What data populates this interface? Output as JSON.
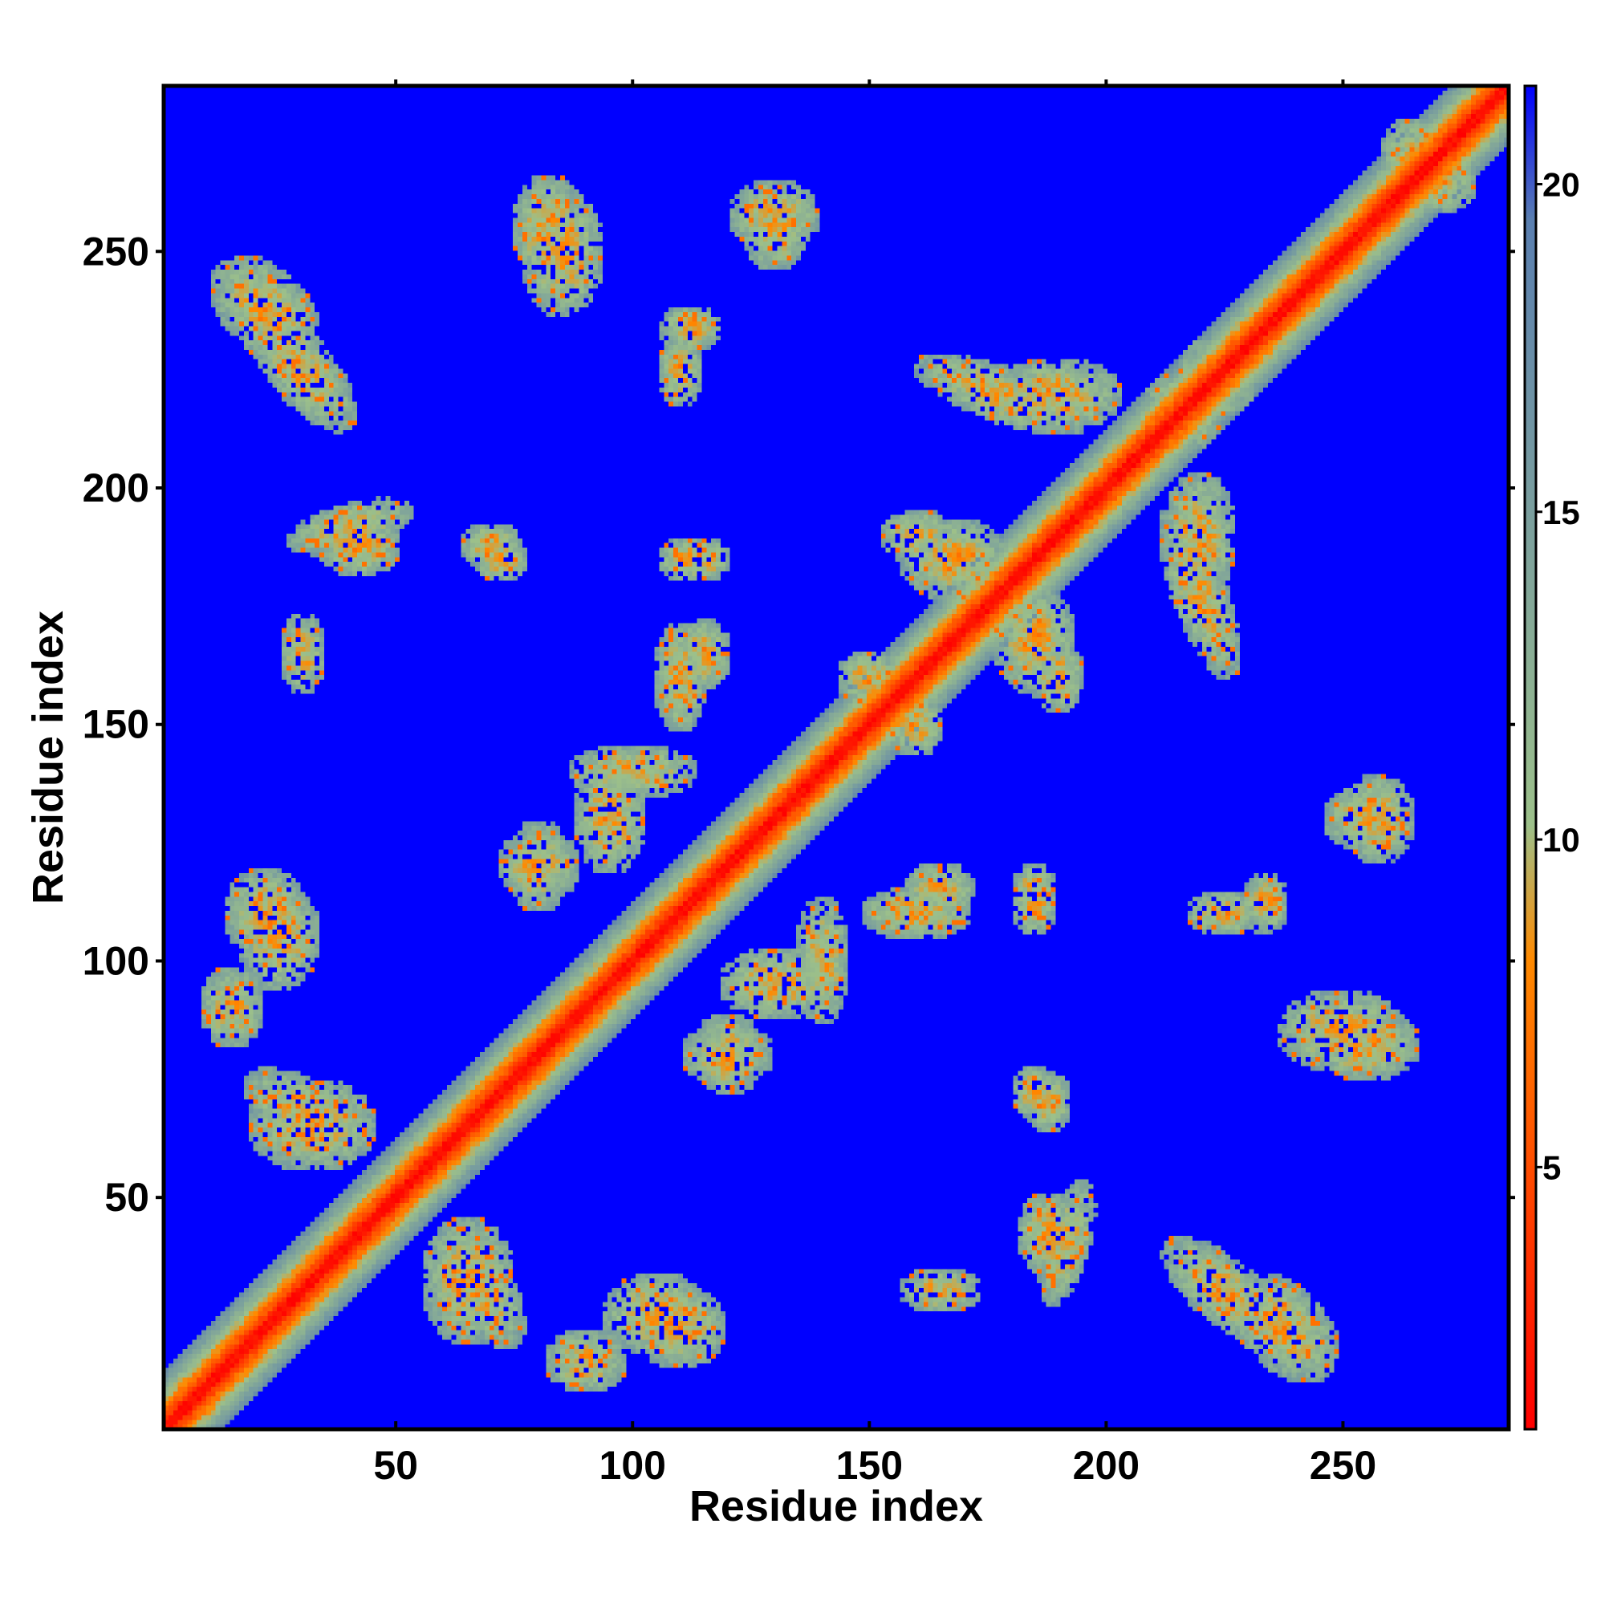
{
  "chart_data": {
    "type": "heatmap",
    "title": "",
    "xlabel": "Residue index",
    "ylabel": "Residue index",
    "xlim": [
      1,
      285
    ],
    "ylim": [
      1,
      285
    ],
    "x_ticks": [
      50,
      100,
      150,
      200,
      250
    ],
    "y_ticks": [
      50,
      100,
      150,
      200,
      250
    ],
    "colorbar": {
      "range": [
        1,
        21.5
      ],
      "ticks": [
        5,
        10,
        15,
        20
      ],
      "colors": [
        "#ff0000",
        "#ff8a00",
        "#9cc08a",
        "#5a7fb0",
        "#0000ff"
      ],
      "stops": [
        0.0,
        0.35,
        0.45,
        0.9,
        1.0
      ]
    },
    "values_description": "symmetric residue–residue distance map (Å); near diagonal ≈1–5 (red/orange), contact clusters ≈8–12 (green), background >20 (blue)",
    "contact_clusters": [
      {
        "x": 22,
        "y": 238,
        "sx": 14,
        "sy": 9,
        "angle": -45
      },
      {
        "x": 85,
        "y": 250,
        "sx": 9,
        "sy": 14,
        "angle": 0
      },
      {
        "x": 130,
        "y": 258,
        "sx": 10,
        "sy": 8,
        "angle": 0
      },
      {
        "x": 112,
        "y": 234,
        "sx": 7,
        "sy": 5,
        "angle": 0
      },
      {
        "x": 40,
        "y": 192,
        "sx": 14,
        "sy": 5,
        "angle": 15
      },
      {
        "x": 70,
        "y": 188,
        "sx": 7,
        "sy": 5,
        "angle": 0
      },
      {
        "x": 112,
        "y": 185,
        "sx": 7,
        "sy": 5,
        "angle": 0
      },
      {
        "x": 110,
        "y": 160,
        "sx": 6,
        "sy": 12,
        "angle": 0
      },
      {
        "x": 178,
        "y": 220,
        "sx": 20,
        "sy": 6,
        "angle": -20
      },
      {
        "x": 220,
        "y": 190,
        "sx": 8,
        "sy": 14,
        "angle": 0
      },
      {
        "x": 185,
        "y": 168,
        "sx": 9,
        "sy": 12,
        "angle": 0
      },
      {
        "x": 160,
        "y": 190,
        "sx": 8,
        "sy": 6,
        "angle": 0
      },
      {
        "x": 150,
        "y": 160,
        "sx": 7,
        "sy": 6,
        "angle": 0
      },
      {
        "x": 22,
        "y": 110,
        "sx": 9,
        "sy": 10,
        "angle": 0
      },
      {
        "x": 80,
        "y": 120,
        "sx": 9,
        "sy": 8,
        "angle": 0
      },
      {
        "x": 100,
        "y": 140,
        "sx": 14,
        "sy": 6,
        "angle": 0
      },
      {
        "x": 130,
        "y": 95,
        "sx": 12,
        "sy": 8,
        "angle": 0
      },
      {
        "x": 120,
        "y": 80,
        "sx": 10,
        "sy": 7,
        "angle": 0
      },
      {
        "x": 165,
        "y": 115,
        "sx": 8,
        "sy": 6,
        "angle": 0
      },
      {
        "x": 185,
        "y": 115,
        "sx": 5,
        "sy": 6,
        "angle": 0
      },
      {
        "x": 255,
        "y": 130,
        "sx": 9,
        "sy": 7,
        "angle": 0
      },
      {
        "x": 225,
        "y": 110,
        "sx": 8,
        "sy": 5,
        "angle": 0
      },
      {
        "x": 255,
        "y": 82,
        "sx": 12,
        "sy": 8,
        "angle": 0
      },
      {
        "x": 30,
        "y": 68,
        "sx": 14,
        "sy": 7,
        "angle": -30
      },
      {
        "x": 65,
        "y": 32,
        "sx": 10,
        "sy": 14,
        "angle": 0
      },
      {
        "x": 105,
        "y": 25,
        "sx": 12,
        "sy": 9,
        "angle": 0
      },
      {
        "x": 188,
        "y": 42,
        "sx": 7,
        "sy": 9,
        "angle": 0
      },
      {
        "x": 225,
        "y": 30,
        "sx": 16,
        "sy": 7,
        "angle": -40
      },
      {
        "x": 15,
        "y": 90,
        "sx": 7,
        "sy": 9,
        "angle": 0
      },
      {
        "x": 165,
        "y": 30,
        "sx": 9,
        "sy": 5,
        "angle": 0
      },
      {
        "x": 270,
        "y": 265,
        "sx": 9,
        "sy": 7,
        "angle": 0
      },
      {
        "x": 185,
        "y": 72,
        "sx": 5,
        "sy": 6,
        "angle": 0
      },
      {
        "x": 220,
        "y": 220,
        "sx": 12,
        "sy": 5,
        "angle": 0
      }
    ]
  }
}
